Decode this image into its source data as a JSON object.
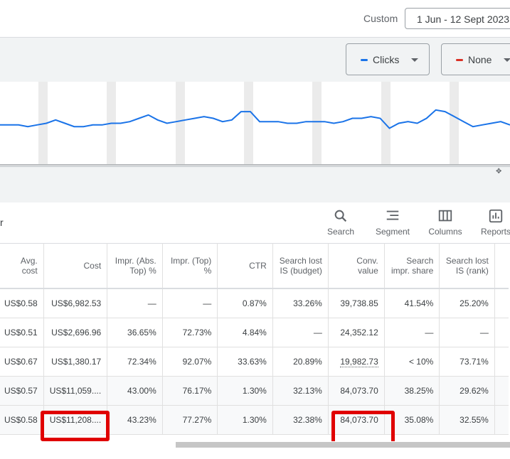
{
  "header": {
    "custom_label": "Custom",
    "date_range": "1 Jun - 12 Sept 2023"
  },
  "chart_controls": {
    "metric1": {
      "label": "Clicks",
      "color": "#1a73e8"
    },
    "metric2": {
      "label": "None",
      "color": "#d93025"
    }
  },
  "chart_data": {
    "type": "line",
    "series": [
      {
        "values": [
          64,
          64,
          64,
          63,
          64,
          65,
          67,
          65,
          63,
          63,
          64,
          64,
          65,
          65,
          66,
          68,
          70,
          67,
          65,
          66,
          67,
          68,
          69,
          68,
          66,
          67,
          72,
          72,
          66,
          66,
          66,
          65,
          65,
          66,
          66,
          66,
          65,
          66,
          68,
          68,
          69,
          68,
          62,
          65,
          66,
          65,
          68,
          73,
          72,
          69,
          66,
          63,
          64,
          65,
          66,
          64
        ]
      }
    ],
    "color": "#1a73e8",
    "grid": false,
    "ylim": [
      40,
      90
    ]
  },
  "toolbar": {
    "filter_fragment": "r",
    "search": "Search",
    "segment": "Segment",
    "columns": "Columns",
    "reports": "Reports"
  },
  "table": {
    "headers": {
      "avg_cost": "Avg. cost",
      "cost": "Cost",
      "impr_abs_top": "Impr. (Abs. Top) %",
      "impr_top": "Impr. (Top) %",
      "ctr": "CTR",
      "lost_budget": "Search lost IS (budget)",
      "conv_value": "Conv. value",
      "impr_share": "Search impr. share",
      "lost_rank": "Search lost IS (rank)"
    },
    "rows": [
      {
        "avg_cost": "US$0.58",
        "cost": "US$6,982.53",
        "impr_abs_top": "—",
        "impr_top": "—",
        "ctr": "0.87%",
        "lost_budget": "33.26%",
        "conv_value": "39,738.85",
        "impr_share": "41.54%",
        "lost_rank": "25.20%"
      },
      {
        "avg_cost": "US$0.51",
        "cost": "US$2,696.96",
        "impr_abs_top": "36.65%",
        "impr_top": "72.73%",
        "ctr": "4.84%",
        "lost_budget": "—",
        "conv_value": "24,352.12",
        "impr_share": "—",
        "lost_rank": "—"
      },
      {
        "avg_cost": "US$0.67",
        "cost": "US$1,380.17",
        "impr_abs_top": "72.34%",
        "impr_top": "92.07%",
        "ctr": "33.63%",
        "lost_budget": "20.89%",
        "conv_value": "19,982.73",
        "impr_share": "< 10%",
        "lost_rank": "73.71%"
      },
      {
        "avg_cost": "US$0.57",
        "cost": "US$11,059....",
        "impr_abs_top": "43.00%",
        "impr_top": "76.17%",
        "ctr": "1.30%",
        "lost_budget": "32.13%",
        "conv_value": "84,073.70",
        "impr_share": "38.25%",
        "lost_rank": "29.62%"
      },
      {
        "avg_cost": "US$0.58",
        "cost": "US$11,208....",
        "impr_abs_top": "43.23%",
        "impr_top": "77.27%",
        "ctr": "1.30%",
        "lost_budget": "32.38%",
        "conv_value": "84,073.70",
        "impr_share": "35.08%",
        "lost_rank": "32.55%"
      }
    ]
  },
  "highlight_color": "#e00000"
}
